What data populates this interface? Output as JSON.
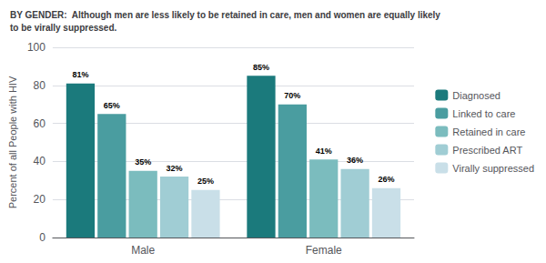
{
  "chart_data": {
    "type": "bar",
    "title": "BY GENDER:  Although men are less likely to be retained in care, men and women are equally likely\nto be virally suppressed.",
    "categories": [
      "Male",
      "Female"
    ],
    "series": [
      {
        "name": "Diagnosed",
        "color": "#1b7a7c",
        "values": [
          81,
          85
        ],
        "value_labels": [
          "81%",
          "85%"
        ]
      },
      {
        "name": "Linked to care",
        "color": "#4a9da0",
        "values": [
          65,
          70
        ],
        "value_labels": [
          "65%",
          "70%"
        ]
      },
      {
        "name": "Retained in care",
        "color": "#7bbcbe",
        "values": [
          35,
          41
        ],
        "value_labels": [
          "35%",
          "41%"
        ]
      },
      {
        "name": "Prescribed ART",
        "color": "#a0cdd4",
        "values": [
          32,
          36
        ],
        "value_labels": [
          "32%",
          "36%"
        ]
      },
      {
        "name": "Virally suppressed",
        "color": "#c9dfe8",
        "values": [
          25,
          26
        ],
        "value_labels": [
          "25%",
          "26%"
        ]
      }
    ],
    "ylabel": "Percent of all People with HIV",
    "ylim": [
      0,
      100
    ],
    "yticks": [
      0,
      20,
      40,
      60,
      80,
      100
    ],
    "grid": true,
    "legend": "right",
    "data_labels": true
  }
}
